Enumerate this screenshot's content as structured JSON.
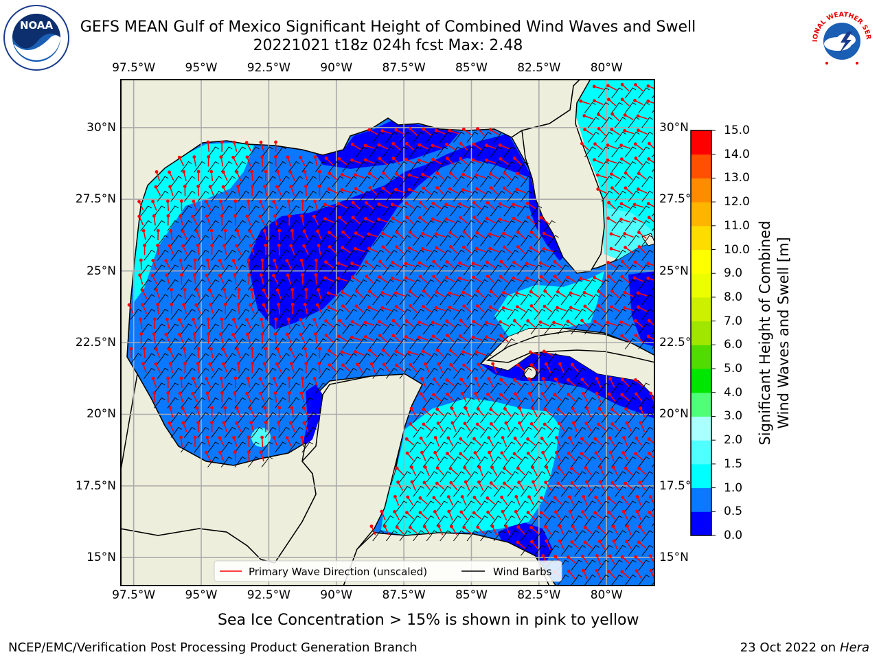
{
  "title": {
    "line1": "GEFS MEAN Gulf of Mexico Significant Height of Combined Wind Waves and Swell",
    "line2": "20221021 t18z 024h fcst   Max: 2.48"
  },
  "logos": {
    "left_text": "NOAA",
    "left_ring_text": "NATIONAL OCEANIC AND ATMOSPHERIC ADMINISTRATION · U.S. DEPARTMENT OF COMMERCE",
    "right_ring_text": "NATIONAL WEATHER SERVICE"
  },
  "axes": {
    "lon_ticks": [
      "97.5°W",
      "95°W",
      "92.5°W",
      "90°W",
      "87.5°W",
      "85°W",
      "82.5°W",
      "80°W"
    ],
    "lat_ticks": [
      "30°N",
      "27.5°N",
      "25°N",
      "22.5°N",
      "20°N",
      "17.5°N",
      "15°N"
    ],
    "lon_range": [
      -98.0,
      -78.2
    ],
    "lat_range": [
      14.0,
      31.7
    ]
  },
  "legend": {
    "wave_label": "Primary Wave Direction (unscaled)",
    "barb_label": "Wind Barbs",
    "wave_color": "#ff0000",
    "barb_color": "#000000"
  },
  "colorbar": {
    "label_line1": "Significant Height of Combined",
    "label_line2": "Wind Waves and Swell [m]",
    "ticks": [
      "0.0",
      "0.5",
      "1.0",
      "1.5",
      "2.0",
      "3.0",
      "4.0",
      "5.0",
      "6.0",
      "7.0",
      "8.0",
      "9.0",
      "10.0",
      "11.0",
      "12.0",
      "13.0",
      "14.0",
      "15.0"
    ],
    "colors": [
      "#0000ff",
      "#0a78ff",
      "#00ffff",
      "#50ffff",
      "#aaffff",
      "#50ff78",
      "#00e600",
      "#50dc00",
      "#a0e600",
      "#cdf000",
      "#ebff00",
      "#ffff00",
      "#ffdc00",
      "#ffb400",
      "#ff8c00",
      "#ff5000",
      "#ff0000"
    ]
  },
  "map_colors": {
    "land": "#eeeedc",
    "coast": "#000000",
    "grid": "#aaaaaa"
  },
  "footnote": "Sea Ice Concentration > 15% is shown in pink to yellow",
  "credit_left": "NCEP/EMC/Verification Post Processing Product Generation Branch",
  "credit_right_date": "23 Oct 2022 on",
  "credit_right_host": "Hera"
}
